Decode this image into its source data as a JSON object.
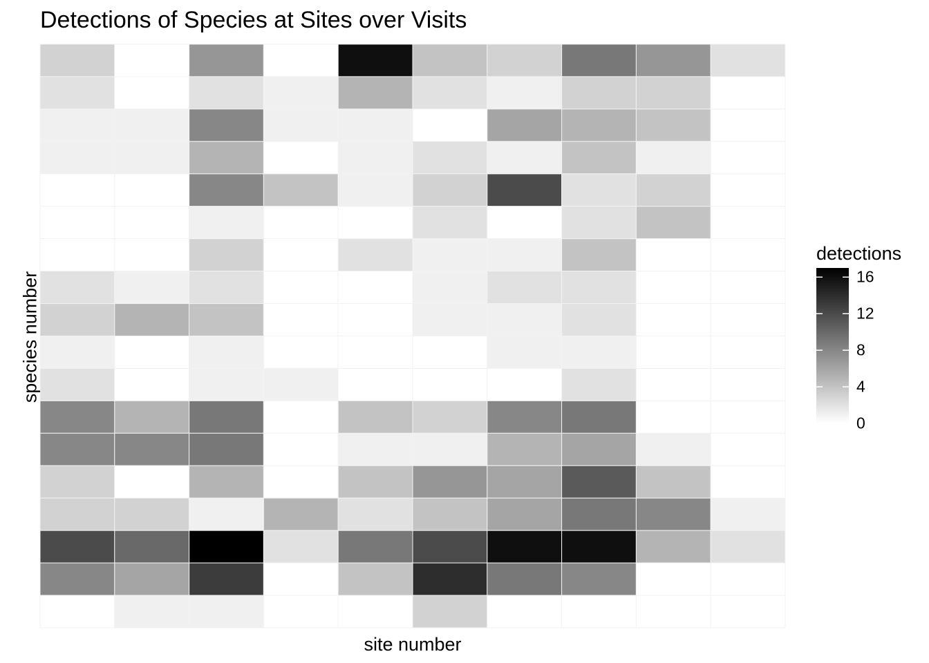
{
  "chart_data": {
    "type": "heatmap",
    "title": "Detections of Species at Sites over Visits",
    "xlabel": "site number",
    "ylabel": "species number",
    "legend": {
      "title": "detections",
      "ticks": [
        0,
        4,
        8,
        12,
        16
      ],
      "range": [
        0,
        17
      ],
      "low_color": "#ffffff",
      "high_color": "#000000",
      "placement": "right"
    },
    "columns": 10,
    "rows": 18,
    "values": [
      [
        3,
        0,
        7,
        0,
        16,
        4,
        3,
        9,
        7,
        2
      ],
      [
        2,
        0,
        2,
        1,
        5,
        2,
        1,
        3,
        3,
        0
      ],
      [
        1,
        1,
        8,
        1,
        1,
        0,
        6,
        5,
        4,
        0
      ],
      [
        1,
        1,
        5,
        0,
        1,
        2,
        1,
        4,
        1,
        0
      ],
      [
        0,
        0,
        8,
        4,
        1,
        3,
        12,
        2,
        3,
        0
      ],
      [
        0,
        0,
        1,
        0,
        0,
        2,
        0,
        2,
        4,
        0
      ],
      [
        0,
        0,
        3,
        0,
        2,
        1,
        1,
        4,
        0,
        0
      ],
      [
        2,
        1,
        2,
        0,
        0,
        1,
        2,
        2,
        0,
        0
      ],
      [
        3,
        5,
        4,
        0,
        0,
        1,
        1,
        2,
        0,
        0
      ],
      [
        1,
        0,
        1,
        0,
        0,
        0,
        1,
        1,
        0,
        0
      ],
      [
        2,
        0,
        1,
        1,
        0,
        0,
        0,
        2,
        0,
        0
      ],
      [
        8,
        5,
        9,
        0,
        4,
        3,
        8,
        9,
        0,
        0
      ],
      [
        8,
        8,
        9,
        0,
        1,
        1,
        5,
        6,
        1,
        0
      ],
      [
        3,
        0,
        5,
        0,
        4,
        7,
        6,
        11,
        4,
        0
      ],
      [
        3,
        3,
        1,
        5,
        2,
        4,
        6,
        9,
        8,
        1
      ],
      [
        12,
        10,
        17,
        2,
        9,
        12,
        16,
        16,
        5,
        2
      ],
      [
        8,
        6,
        13,
        0,
        4,
        14,
        9,
        8,
        0,
        0
      ],
      [
        0,
        1,
        1,
        0,
        0,
        3,
        0,
        0,
        0,
        0
      ]
    ]
  }
}
